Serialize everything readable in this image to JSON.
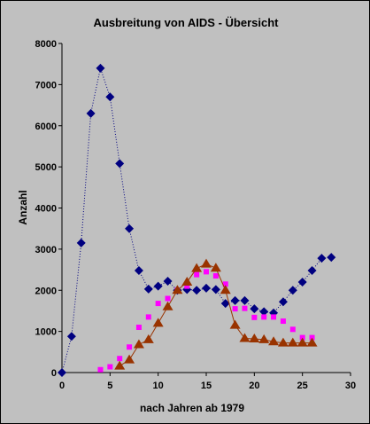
{
  "chart_data": {
    "type": "line",
    "title": "Ausbreitung von AIDS - Übersicht",
    "xlabel": "nach Jahren ab  1979",
    "ylabel": "Anzahl",
    "xlim": [
      0,
      30
    ],
    "ylim": [
      0,
      8000
    ],
    "xticks": [
      "0",
      "5",
      "10",
      "15",
      "20",
      "25",
      "30"
    ],
    "yticks": [
      "0",
      "1000",
      "2000",
      "3000",
      "4000",
      "5000",
      "6000",
      "7000",
      "8000"
    ],
    "grid": "none",
    "legend": "none",
    "series": [
      {
        "marker": "diamond",
        "color": "#000080",
        "line": "dotted",
        "x": [
          0,
          1,
          2,
          3,
          4,
          5,
          6,
          7,
          8,
          9,
          10,
          11,
          12,
          13,
          14,
          15,
          16,
          17,
          18,
          19,
          20,
          21,
          22,
          23,
          24,
          25,
          26,
          27,
          28
        ],
        "y": [
          0,
          880,
          3150,
          6300,
          7400,
          6700,
          5080,
          3500,
          2480,
          2030,
          2100,
          2220,
          2000,
          2020,
          2000,
          2050,
          2020,
          1680,
          1750,
          1750,
          1550,
          1480,
          1450,
          1720,
          2000,
          2200,
          2480,
          2780,
          2800
        ]
      },
      {
        "marker": "square",
        "color": "#ff00ff",
        "line": "none",
        "x": [
          4,
          5,
          6,
          7,
          8,
          9,
          10,
          11,
          12,
          13,
          14,
          15,
          16,
          17,
          18,
          19,
          20,
          21,
          22,
          23,
          24,
          25,
          26
        ],
        "y": [
          70,
          140,
          340,
          620,
          1100,
          1350,
          1680,
          1800,
          2000,
          2100,
          2380,
          2450,
          2350,
          2150,
          1550,
          1560,
          1340,
          1350,
          1350,
          1250,
          1050,
          850,
          850
        ]
      },
      {
        "marker": "triangle",
        "color": "#993300",
        "line": "solid",
        "x": [
          6,
          7,
          8,
          9,
          10,
          11,
          12,
          13,
          14,
          15,
          16,
          17,
          18,
          19,
          20,
          21,
          22,
          23,
          24,
          25,
          26
        ],
        "y": [
          160,
          310,
          680,
          800,
          1200,
          1600,
          2000,
          2200,
          2530,
          2640,
          2540,
          2000,
          1150,
          830,
          820,
          800,
          750,
          720,
          720,
          720,
          720
        ]
      }
    ]
  }
}
